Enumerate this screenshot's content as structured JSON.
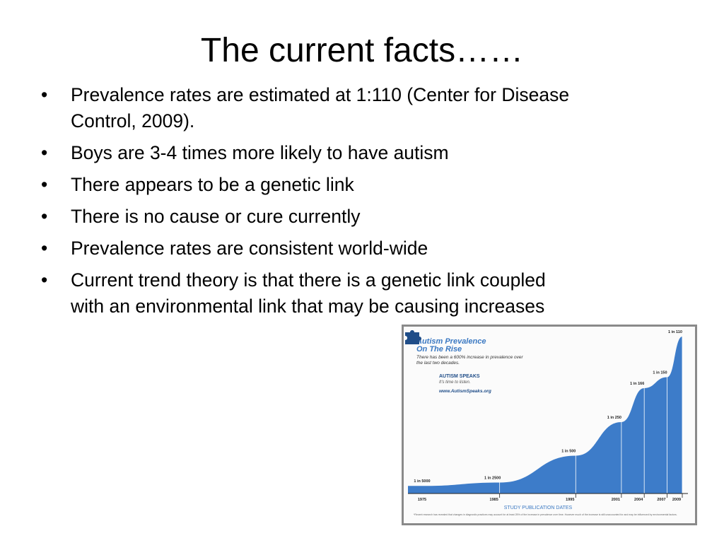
{
  "slide": {
    "title": "The current facts……",
    "bullets": [
      "Prevalence rates are estimated at 1:110  (Center for Disease Control, 2009).",
      "Boys are 3-4 times more likely to have autism",
      "There appears to be a genetic link",
      "There is no cause or cure currently",
      "Prevalence rates are consistent world-wide",
      "Current trend theory is that there is a genetic link coupled with an environmental link that may be causing increases"
    ]
  },
  "figure": {
    "title_line1": "Autism Prevalence",
    "title_line2": "On The Rise",
    "subtitle": "There has been a 600% increase in prevalence over the last two decades.",
    "brand": "AUTISM SPEAKS",
    "brand_tagline": "It's time to listen.",
    "brand_url": "www.AutismSpeaks.org",
    "footnote": "*Recent research has revealed that changes in diagnostic practices may account for at least 25% of the increase in prevalence over time. However much of the increase is still unaccounted for and may be influenced by environmental factors.",
    "colors": {
      "fill": "#3d7cc9",
      "title": "#3a78c2",
      "brand": "#1f4d88"
    },
    "icon": "puzzle-piece-icon"
  },
  "chart_data": {
    "type": "area",
    "x": [
      1975,
      1985,
      1995,
      2001,
      2004,
      2007,
      2009
    ],
    "x_labels": [
      "1975",
      "1985",
      "1995",
      "2001",
      "2004",
      "2007",
      "2009"
    ],
    "point_labels": [
      "1 in 5000",
      "1 in 2500",
      "1 in 500",
      "1 in 250",
      "1 in 166",
      "1 in 150",
      "1 in 110"
    ],
    "values_per_10000": [
      2,
      4,
      20,
      40,
      60.2,
      66.7,
      90.9
    ],
    "xlabel": "STUDY PUBLICATION DATES",
    "ylabel": "",
    "grid": false
  }
}
